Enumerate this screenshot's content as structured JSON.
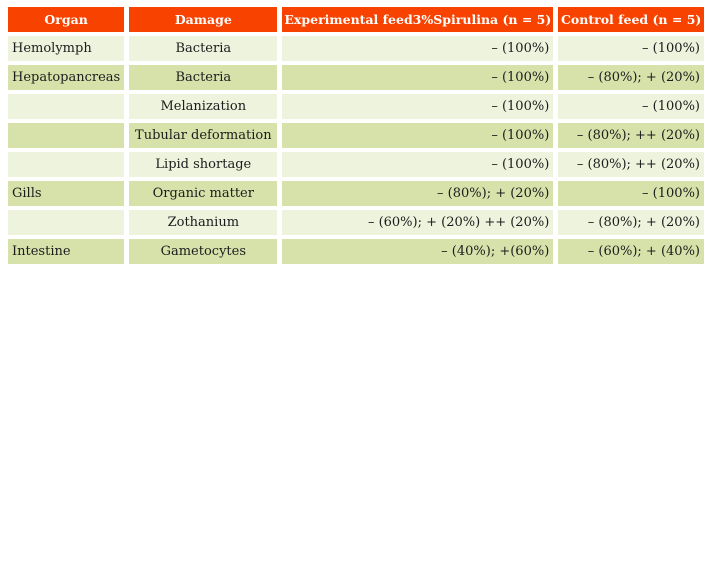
{
  "table": {
    "columns": [
      {
        "label": "Organ"
      },
      {
        "label": "Damage"
      },
      {
        "label": "Experimental feed3%Spirulina (n = 5)"
      },
      {
        "label": "Control feed (n = 5)"
      }
    ],
    "rows": [
      {
        "organ": "Hemolymph",
        "damage": "Bacteria",
        "experimental": "– (100%)",
        "control": "– (100%)"
      },
      {
        "organ": "Hepatopancreas",
        "damage": "Bacteria",
        "experimental": "– (100%)",
        "control": "– (80%); + (20%)"
      },
      {
        "organ": "",
        "damage": "Melanization",
        "experimental": "– (100%)",
        "control": "– (100%)"
      },
      {
        "organ": "",
        "damage": "Tubular deformation",
        "experimental": "– (100%)",
        "control": "– (80%); ++ (20%)"
      },
      {
        "organ": "",
        "damage": "Lipid shortage",
        "experimental": "– (100%)",
        "control": "– (80%); ++ (20%)"
      },
      {
        "organ": "Gills",
        "damage": "Organic matter",
        "experimental": "– (80%); + (20%)",
        "control": "– (100%)"
      },
      {
        "organ": "",
        "damage": "Zothanium",
        "experimental": "– (60%); + (20%) ++ (20%)",
        "control": "– (80%); + (20%)"
      },
      {
        "organ": "Intestine",
        "damage": "Gametocytes",
        "experimental": "– (40%); +(60%)",
        "control": "– (60%); + (40%)"
      }
    ]
  },
  "colors": {
    "header_bg": "#f84300",
    "header_text": "#ffffff",
    "row_light": "#edf3dd",
    "row_dark": "#d7e2ab",
    "text": "#1c1c1c",
    "page_bg": "#ffffff"
  }
}
